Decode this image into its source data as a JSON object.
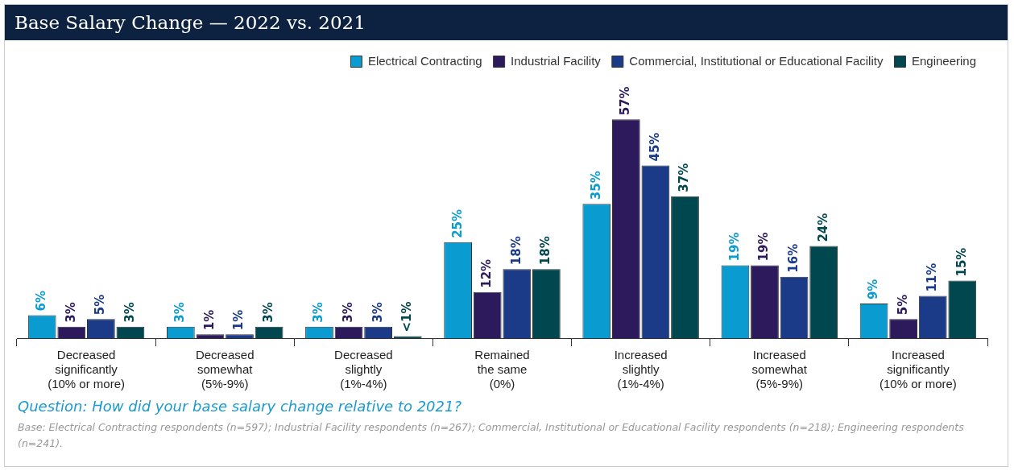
{
  "chart_data": {
    "type": "bar",
    "title": "Base Salary Change — 2022 vs. 2021",
    "categories": [
      "Decreased\nsignificantly\n(10% or more)",
      "Decreased\nsomewhat\n(5%-9%)",
      "Decreased\nslightly\n(1%-4%)",
      "Remained\nthe same\n(0%)",
      "Increased\nslightly\n(1%-4%)",
      "Increased\nsomewhat\n(5%-9%)",
      "Increased\nsignificantly\n(10% or more)"
    ],
    "series": [
      {
        "name": "Electrical Contracting",
        "color": "#0a9bd0",
        "values": [
          6,
          3,
          3,
          25,
          35,
          19,
          9
        ],
        "value_labels": [
          "6%",
          "3%",
          "3%",
          "25%",
          "35%",
          "19%",
          "9%"
        ]
      },
      {
        "name": "Industrial Facility",
        "color": "#2d1a5c",
        "values": [
          3,
          1,
          3,
          12,
          57,
          19,
          5
        ],
        "value_labels": [
          "3%",
          "1%",
          "3%",
          "12%",
          "57%",
          "19%",
          "5%"
        ]
      },
      {
        "name": "Commercial, Institutional or Educational Facility",
        "color": "#1b3a88",
        "values": [
          5,
          1,
          3,
          18,
          45,
          16,
          11
        ],
        "value_labels": [
          "5%",
          "1%",
          "3%",
          "18%",
          "45%",
          "16%",
          "11%"
        ]
      },
      {
        "name": "Engineering",
        "color": "#00474f",
        "values": [
          3,
          3,
          0.5,
          18,
          37,
          24,
          15
        ],
        "value_labels": [
          "3%",
          "3%",
          "<1%",
          "18%",
          "37%",
          "24%",
          "15%"
        ]
      }
    ],
    "legend": "top right",
    "annotations": [
      "Question: How did your base salary change relative to 2021?",
      "Base: Electrical Contracting respondents (n=597); Industrial Facility respondents (n=267); Commercial, Institutional or Educational Facility respondents (n=218); Engineering respondents (n=241)."
    ]
  }
}
